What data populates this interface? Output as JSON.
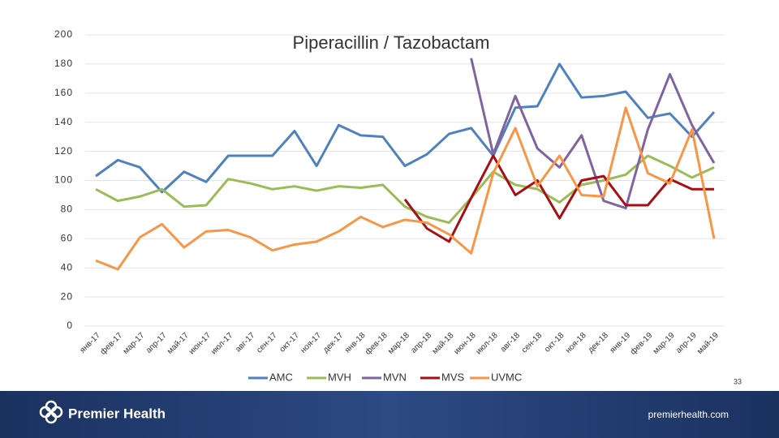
{
  "chart_data": {
    "type": "line",
    "title": "Piperacillin / Tazobactam",
    "categories": [
      "янв-17",
      "фев-17",
      "мар-17",
      "апр-17",
      "май-17",
      "июн-17",
      "июл-17",
      "авг-17",
      "сен-17",
      "окт-17",
      "ноя-17",
      "дек-17",
      "янв-18",
      "фев-18",
      "мар-18",
      "апр-18",
      "май-18",
      "июн-18",
      "июл-18",
      "авг-18",
      "сен-18",
      "окт-18",
      "ноя-18",
      "дек-18",
      "янв-19",
      "фев-19",
      "мар-19",
      "апр-19",
      "май-19"
    ],
    "series": [
      {
        "name": "AMC",
        "color": "#4f81bd",
        "values": [
          103,
          114,
          109,
          92,
          106,
          99,
          117,
          117,
          117,
          134,
          110,
          138,
          131,
          130,
          110,
          118,
          132,
          136,
          117,
          150,
          151,
          180,
          157,
          158,
          161,
          143,
          146,
          130,
          147
        ]
      },
      {
        "name": "MVH",
        "color": "#9bbb59",
        "values": [
          94,
          86,
          89,
          94,
          82,
          83,
          101,
          98,
          94,
          96,
          93,
          96,
          95,
          97,
          82,
          75,
          71,
          88,
          106,
          97,
          94,
          85,
          97,
          100,
          104,
          117,
          110,
          102,
          109
        ]
      },
      {
        "name": "MVN",
        "color": "#8064a2",
        "values": [
          null,
          null,
          null,
          null,
          null,
          null,
          null,
          null,
          null,
          null,
          null,
          null,
          null,
          null,
          null,
          null,
          null,
          184,
          118,
          158,
          122,
          109,
          131,
          86,
          81,
          135,
          173,
          138,
          112
        ]
      },
      {
        "name": "MVS",
        "color": "#a50f15",
        "values": [
          null,
          null,
          null,
          null,
          null,
          null,
          null,
          null,
          null,
          null,
          null,
          null,
          null,
          null,
          87,
          67,
          58,
          88,
          117,
          90,
          100,
          74,
          100,
          103,
          83,
          83,
          101,
          94,
          94
        ]
      },
      {
        "name": "UVMC",
        "color": "#f79646",
        "values": [
          45,
          39,
          61,
          70,
          54,
          65,
          66,
          61,
          52,
          56,
          58,
          65,
          75,
          68,
          73,
          71,
          63,
          50,
          105,
          136,
          96,
          117,
          90,
          89,
          150,
          105,
          98,
          135,
          60
        ]
      }
    ],
    "ylim": [
      0,
      200
    ],
    "yticks": [
      0,
      20,
      40,
      60,
      80,
      100,
      120,
      140,
      160,
      180,
      200
    ],
    "grid": true,
    "legend": "bottom"
  },
  "footer": {
    "brand": "Premier Health",
    "url": "premierhealth.com"
  },
  "slide_number": "33"
}
